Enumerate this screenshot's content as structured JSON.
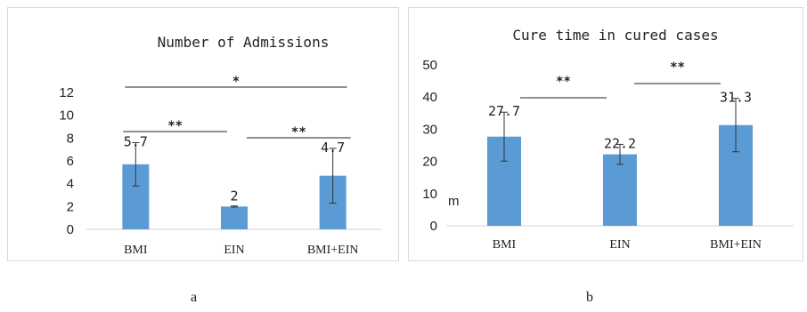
{
  "captions": {
    "a": "a",
    "b": "b"
  },
  "chart_data": [
    {
      "type": "bar",
      "title": "Number of Admissions",
      "categories": [
        "BMI",
        "EIN",
        "BMI+EIN"
      ],
      "values": [
        5.7,
        2,
        4.7
      ],
      "data_labels": [
        "5.7",
        "2",
        "4.7"
      ],
      "error": [
        1.9,
        0.05,
        2.4
      ],
      "ylim": [
        0,
        12
      ],
      "yticks": [
        0,
        2,
        4,
        6,
        8,
        10,
        12
      ],
      "bar_color": "#5b9bd5",
      "significance": [
        {
          "from": 0,
          "to": 1,
          "label": "**"
        },
        {
          "from": 1,
          "to": 2,
          "label": "**"
        },
        {
          "from": 0,
          "to": 2,
          "label": "*"
        }
      ]
    },
    {
      "type": "bar",
      "title": "Cure time in cured cases",
      "unit_label": "m",
      "categories": [
        "BMI",
        "EIN",
        "BMI+EIN"
      ],
      "values": [
        27.7,
        22.2,
        31.3
      ],
      "data_labels": [
        "27.7",
        "22.2",
        "31.3"
      ],
      "error": [
        7.6,
        3.1,
        8.3
      ],
      "ylim": [
        0,
        50
      ],
      "yticks": [
        0,
        10,
        20,
        30,
        40,
        50
      ],
      "bar_color": "#5b9bd5",
      "significance": [
        {
          "from": 0,
          "to": 1,
          "label": "**"
        },
        {
          "from": 1,
          "to": 2,
          "label": "**"
        }
      ]
    }
  ]
}
